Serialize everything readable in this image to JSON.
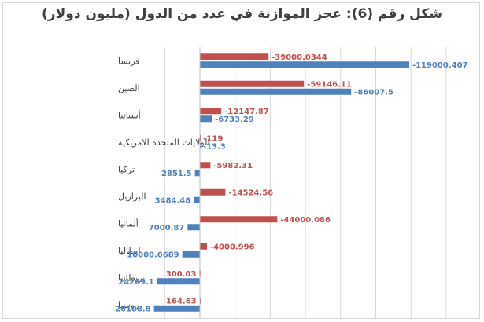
{
  "title": "شكل رقم (6): عجز الموازنة في عدد من الدول (مليون دولار)",
  "colors": {
    "red": "#c0504d",
    "blue": "#4f81bd",
    "grid": "#d9d9d9",
    "label": "#404040"
  },
  "chart_data": {
    "type": "bar",
    "orientation": "horizontal",
    "title": "شكل رقم (6): عجز الموازنة في عدد من الدول (مليون دولار)",
    "categories": [
      "فرنسا",
      "الصين",
      "أسبانيا",
      "الولايات المتحدة الامريكية",
      "تركيا",
      "البرازيل",
      "ألمانيا",
      "إيطاليا",
      "بريطانيا",
      "روسيا"
    ],
    "series": [
      {
        "color": "#c0504d",
        "values": [
          -39000.0344,
          -59146.11,
          -12147.87,
          -119,
          -5982.31,
          -14524.56,
          -44000.086,
          -4000.996,
          300.03,
          164.63
        ],
        "labels": [
          "-39000.0344",
          "-59146.11",
          "-12147.87",
          "-119",
          "-5982.31",
          "-14524.56",
          "-44000.086",
          "-4000.996",
          "300.03",
          "164.63"
        ]
      },
      {
        "color": "#4f81bd",
        "values": [
          -119000.407,
          -86007.5,
          -6733.29,
          -13.3,
          2851.5,
          3484.48,
          7000.87,
          10000.6689,
          24269.1,
          26108.8
        ],
        "labels": [
          "-119000.407",
          "-86007.5",
          "-6733.29",
          "-13.3",
          "2851.5",
          "3484.48",
          "7000.87",
          "10000.6689",
          "24269.1",
          "26108.8"
        ]
      }
    ],
    "axis": {
      "reversed": true,
      "range": [
        -140000,
        40000
      ],
      "gridlines": true
    }
  }
}
